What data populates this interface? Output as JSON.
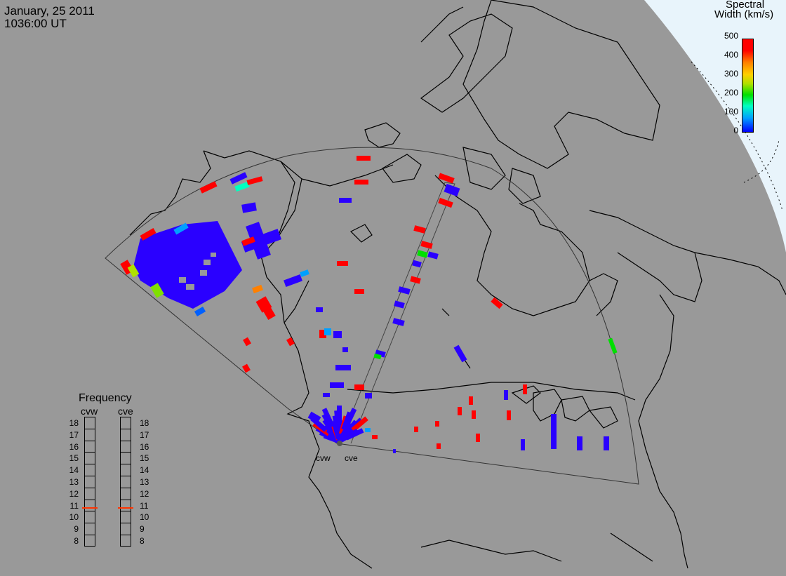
{
  "header": {
    "date": "January, 25 2011",
    "time": "1036:00 UT"
  },
  "colorbar": {
    "title_line1": "Spectral",
    "title_line2": "Width (km/s)",
    "ticks": [
      "500",
      "400",
      "300",
      "200",
      "100",
      "0"
    ],
    "colors": [
      "#ff0000",
      "#ff8000",
      "#ffd000",
      "#00e000",
      "#00ffc0",
      "#0000ff"
    ]
  },
  "frequency": {
    "title": "Frequency",
    "radars": [
      "cvw",
      "cve"
    ],
    "scale": [
      "18",
      "17",
      "16",
      "15",
      "14",
      "13",
      "12",
      "11",
      "10",
      "9",
      "8"
    ],
    "cvw_mhz": 10.8,
    "cve_mhz": 10.8
  },
  "radar_labels": [
    "cvw",
    "cve"
  ],
  "colors": {
    "land": "#999999",
    "outside": "#e8f4fb",
    "echo_low": "#2a00ff",
    "echo_high": "#ff0000"
  }
}
